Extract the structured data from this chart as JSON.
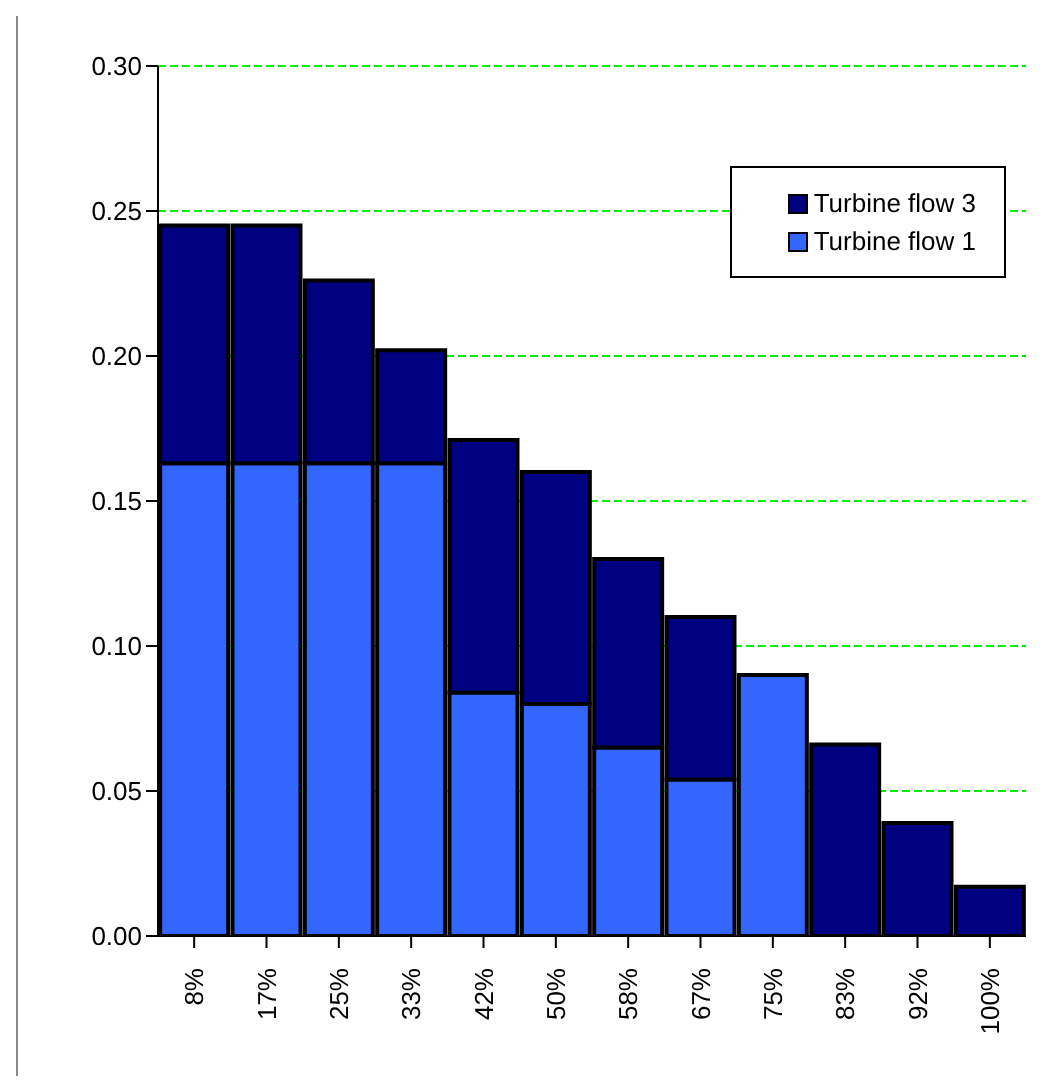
{
  "chart_data": {
    "type": "bar",
    "stacked": true,
    "categories": [
      "8%",
      "17%",
      "25%",
      "33%",
      "42%",
      "50%",
      "58%",
      "67%",
      "75%",
      "83%",
      "92%",
      "100%"
    ],
    "series": [
      {
        "name": "Turbine flow 1",
        "color": "#3366ff",
        "values": [
          0.163,
          0.163,
          0.163,
          0.163,
          0.084,
          0.08,
          0.065,
          0.054,
          0.09,
          0,
          0,
          0
        ]
      },
      {
        "name": "Turbine flow 3",
        "color": "#000080",
        "values": [
          0.082,
          0.082,
          0.063,
          0.039,
          0.087,
          0.08,
          0.065,
          0.056,
          0,
          0.066,
          0.039,
          0.017
        ]
      }
    ],
    "ylim": [
      0,
      0.3
    ],
    "yticks": [
      {
        "value": 0,
        "label": "0.00"
      },
      {
        "value": 0.05,
        "label": "0.05"
      },
      {
        "value": 0.1,
        "label": "0.10"
      },
      {
        "value": 0.15,
        "label": "0.15"
      },
      {
        "value": 0.2,
        "label": "0.20"
      },
      {
        "value": 0.25,
        "label": "0.25"
      },
      {
        "value": 0.3,
        "label": "0.30"
      }
    ],
    "grid": "y",
    "legend": "top right"
  }
}
